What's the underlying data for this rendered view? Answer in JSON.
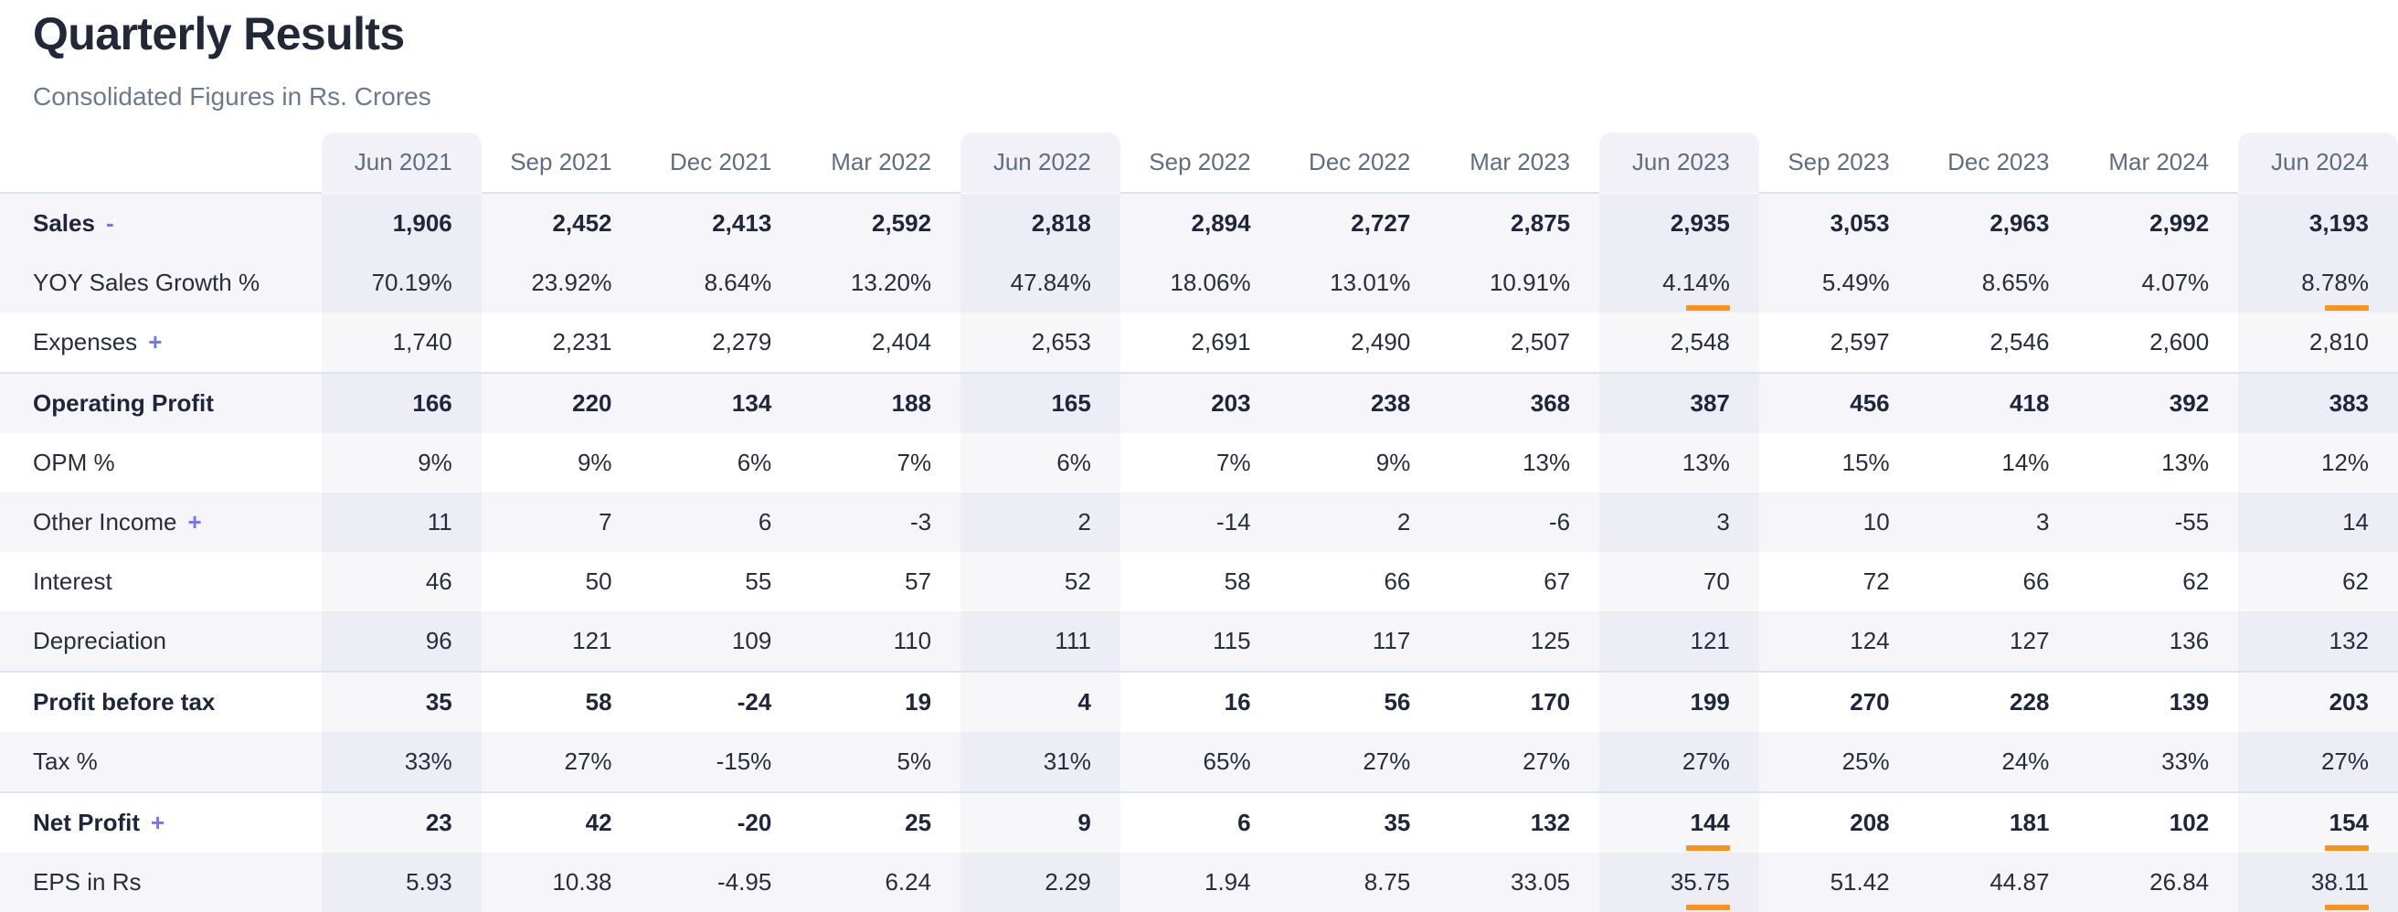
{
  "page": {
    "title": "Quarterly Results",
    "subtitle": "Consolidated Figures in Rs. Crores"
  },
  "colors": {
    "accent_underline": "#f8941d",
    "toggle_link": "#7474f2",
    "row_stripe": "#f5f5fa",
    "column_highlight": "#f1f1f7",
    "header_text": "#5f6d7e",
    "body_text": "#272d3a",
    "divider": "#dde4ee"
  },
  "table": {
    "columns": [
      "Jun 2021",
      "Sep 2021",
      "Dec 2021",
      "Mar 2022",
      "Jun 2022",
      "Sep 2022",
      "Dec 2022",
      "Mar 2023",
      "Jun 2023",
      "Sep 2023",
      "Dec 2023",
      "Mar 2024",
      "Jun 2024"
    ],
    "highlight_columns": [
      0,
      4,
      8,
      12
    ],
    "rows": [
      {
        "label": "Sales",
        "toggle": "-",
        "emphasis": true,
        "values": [
          "1,906",
          "2,452",
          "2,413",
          "2,592",
          "2,818",
          "2,894",
          "2,727",
          "2,875",
          "2,935",
          "3,053",
          "2,963",
          "2,992",
          "3,193"
        ],
        "underline_cols": []
      },
      {
        "label": "YOY Sales Growth %",
        "toggle": "",
        "emphasis": false,
        "values": [
          "70.19%",
          "23.92%",
          "8.64%",
          "13.20%",
          "47.84%",
          "18.06%",
          "13.01%",
          "10.91%",
          "4.14%",
          "5.49%",
          "8.65%",
          "4.07%",
          "8.78%"
        ],
        "underline_cols": [
          8,
          12
        ]
      },
      {
        "label": "Expenses",
        "toggle": "+",
        "emphasis": false,
        "values": [
          "1,740",
          "2,231",
          "2,279",
          "2,404",
          "2,653",
          "2,691",
          "2,490",
          "2,507",
          "2,548",
          "2,597",
          "2,546",
          "2,600",
          "2,810"
        ],
        "underline_cols": []
      },
      {
        "label": "Operating Profit",
        "toggle": "",
        "emphasis": true,
        "values": [
          "166",
          "220",
          "134",
          "188",
          "165",
          "203",
          "238",
          "368",
          "387",
          "456",
          "418",
          "392",
          "383"
        ],
        "underline_cols": []
      },
      {
        "label": "OPM %",
        "toggle": "",
        "emphasis": false,
        "values": [
          "9%",
          "9%",
          "6%",
          "7%",
          "6%",
          "7%",
          "9%",
          "13%",
          "13%",
          "15%",
          "14%",
          "13%",
          "12%"
        ],
        "underline_cols": []
      },
      {
        "label": "Other Income",
        "toggle": "+",
        "emphasis": false,
        "values": [
          "11",
          "7",
          "6",
          "-3",
          "2",
          "-14",
          "2",
          "-6",
          "3",
          "10",
          "3",
          "-55",
          "14"
        ],
        "underline_cols": []
      },
      {
        "label": "Interest",
        "toggle": "",
        "emphasis": false,
        "values": [
          "46",
          "50",
          "55",
          "57",
          "52",
          "58",
          "66",
          "67",
          "70",
          "72",
          "66",
          "62",
          "62"
        ],
        "underline_cols": []
      },
      {
        "label": "Depreciation",
        "toggle": "",
        "emphasis": false,
        "values": [
          "96",
          "121",
          "109",
          "110",
          "111",
          "115",
          "117",
          "125",
          "121",
          "124",
          "127",
          "136",
          "132"
        ],
        "underline_cols": []
      },
      {
        "label": "Profit before tax",
        "toggle": "",
        "emphasis": true,
        "values": [
          "35",
          "58",
          "-24",
          "19",
          "4",
          "16",
          "56",
          "170",
          "199",
          "270",
          "228",
          "139",
          "203"
        ],
        "underline_cols": []
      },
      {
        "label": "Tax %",
        "toggle": "",
        "emphasis": false,
        "values": [
          "33%",
          "27%",
          "-15%",
          "5%",
          "31%",
          "65%",
          "27%",
          "27%",
          "27%",
          "25%",
          "24%",
          "33%",
          "27%"
        ],
        "underline_cols": []
      },
      {
        "label": "Net Profit",
        "toggle": "+",
        "emphasis": true,
        "values": [
          "23",
          "42",
          "-20",
          "25",
          "9",
          "6",
          "35",
          "132",
          "144",
          "208",
          "181",
          "102",
          "154"
        ],
        "underline_cols": [
          8,
          12
        ]
      },
      {
        "label": "EPS in Rs",
        "toggle": "",
        "emphasis": false,
        "values": [
          "5.93",
          "10.38",
          "-4.95",
          "6.24",
          "2.29",
          "1.94",
          "8.75",
          "33.05",
          "35.75",
          "51.42",
          "44.87",
          "26.84",
          "38.11"
        ],
        "underline_cols": [
          8,
          12
        ]
      }
    ]
  }
}
